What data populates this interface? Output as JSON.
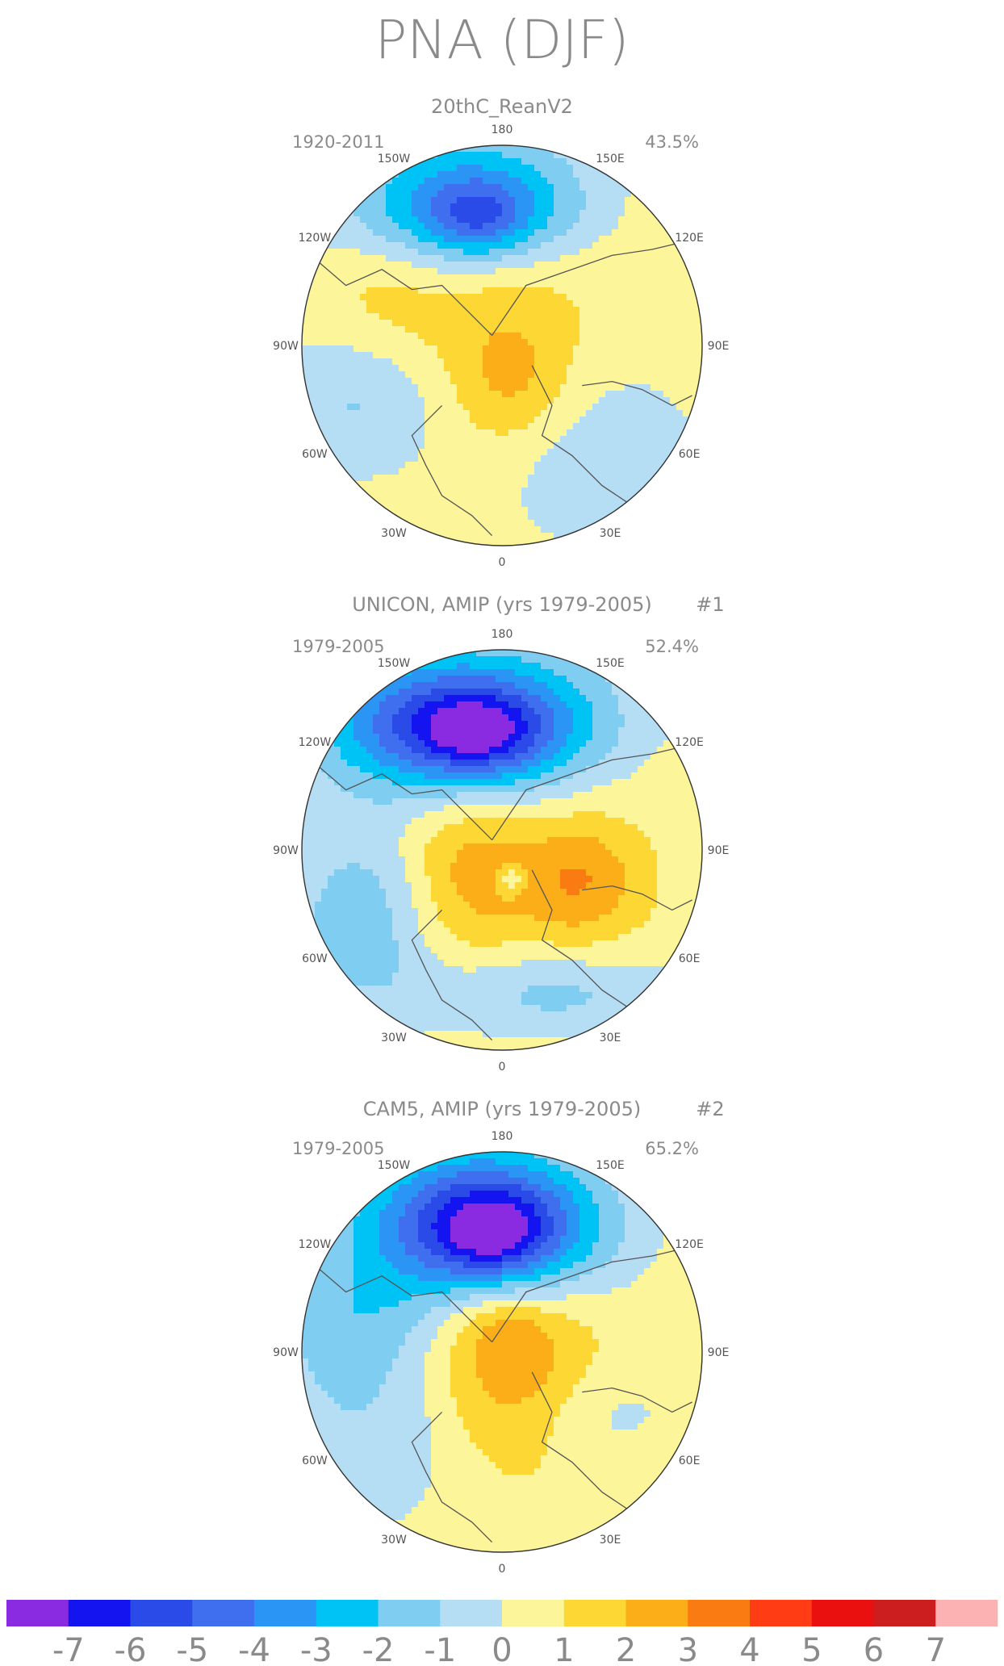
{
  "chart_data": {
    "type": "polar-stereographic contour map",
    "title": "PNA (DJF)",
    "colorbar": {
      "ticks": [
        "-7",
        "-6",
        "-5",
        "-4",
        "-3",
        "-2",
        "-1",
        "0",
        "1",
        "2",
        "3",
        "4",
        "5",
        "6",
        "7"
      ],
      "colors": [
        "#8a2be2",
        "#1414f0",
        "#2a4be8",
        "#3f6fee",
        "#2b95f5",
        "#00c3f5",
        "#7fcdf0",
        "#b5ddf3",
        "#fdf59a",
        "#fdd835",
        "#fbae17",
        "#fa7b12",
        "#ff3c14",
        "#ea1010",
        "#cc1e1e",
        "#fcb2b2"
      ]
    },
    "panels": [
      {
        "title": "20thC_ReanV2",
        "period": "1920-2011",
        "variance": "43.5%",
        "number": "",
        "pole_value": 1.5,
        "pacific_min": -5.8,
        "atlantic_max": 2.0,
        "structure": "negative center over North Pacific, positive center over Greenland/Canada"
      },
      {
        "title": "UNICON, AMIP (yrs 1979-2005)",
        "period": "1979-2005",
        "variance": "52.4%",
        "number": "#1",
        "pole_value": 1.5,
        "pacific_min": -7.2,
        "atlantic_max": 2.5,
        "structure": "deep negative North Pacific low, positive centers over Canada and Siberia"
      },
      {
        "title": "CAM5, AMIP (yrs 1979-2005)",
        "period": "1979-2005",
        "variance": "65.2%",
        "number": "#2",
        "pole_value": 1.5,
        "pacific_min": -7.5,
        "atlantic_max": 2.8,
        "structure": "deep negative North Pacific low, positive center over Arctic Canada/Greenland"
      }
    ],
    "longitude_labels": [
      "180",
      "150E",
      "120E",
      "90E",
      "60E",
      "30E",
      "0",
      "30W",
      "60W",
      "90W",
      "120W",
      "150W"
    ]
  }
}
